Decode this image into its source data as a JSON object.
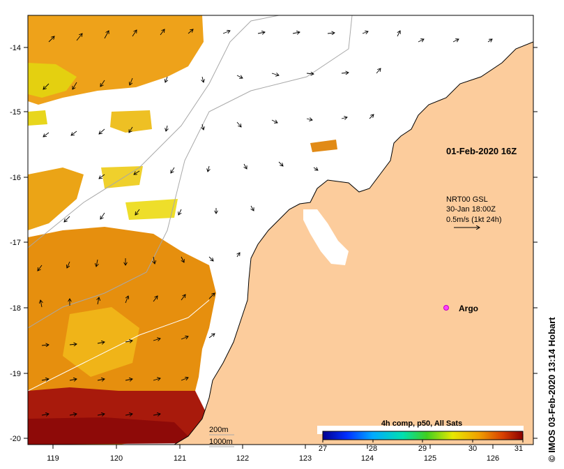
{
  "map": {
    "axes": {
      "lon_ticks": [
        "119",
        "120",
        "121",
        "122",
        "123",
        "124",
        "125",
        "126"
      ],
      "lat_ticks": [
        "-14",
        "-15",
        "-16",
        "-17",
        "-18",
        "-19",
        "-20"
      ]
    },
    "timestamp": "01-Feb-2020 16Z",
    "current_legend": {
      "line1": "NRT00 GSL",
      "line2": "30-Jan 18:00Z",
      "line3": "0.5m/s (1kt 24h)"
    },
    "argo_label": "Argo",
    "contour_labels": [
      "200m",
      "1000m"
    ],
    "colorbar": {
      "title": "4h comp, p50, All Sats",
      "ticks": [
        "27",
        "28",
        "29",
        "30",
        "31"
      ],
      "min": 27,
      "max": 31
    },
    "credit": "© IMOS 03-Feb-2020 13:14 Hobart",
    "colors": {
      "land": "#fccc9c",
      "ocean": "#ffffff",
      "hot": "#9b0d0a",
      "warm": "#e07a0c",
      "mid": "#f1b414",
      "cool": "#eedd14"
    }
  }
}
